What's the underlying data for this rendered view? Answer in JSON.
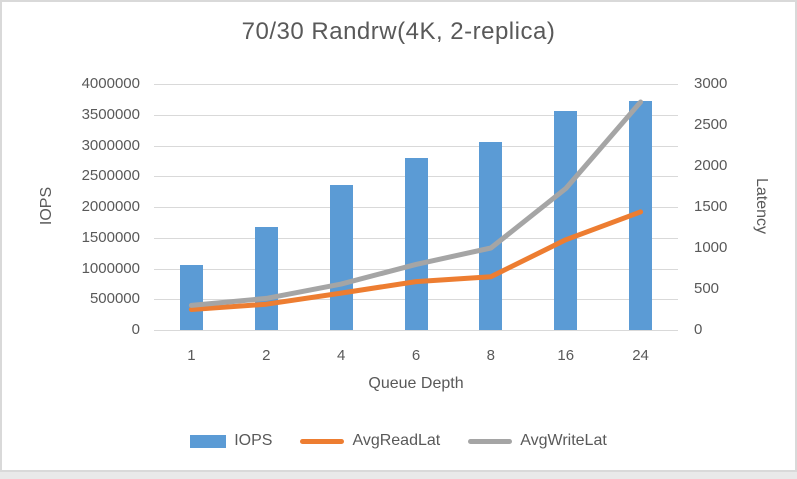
{
  "chart_data": {
    "type": "combo-bar-line",
    "title": "70/30 Randrw(4K, 2-replica)",
    "categories": [
      "1",
      "2",
      "4",
      "6",
      "8",
      "16",
      "24"
    ],
    "xlabel": "Queue Depth",
    "grid": true,
    "legend_position": "bottom",
    "left_axis": {
      "label": "IOPS",
      "min": 0,
      "max": 4000000,
      "tick_step": 500000,
      "tick_labels_top_to_bottom": [
        "4000000",
        "3500000",
        "3000000",
        "2500000",
        "2000000",
        "1500000",
        "1000000",
        "500000",
        "0"
      ]
    },
    "right_axis": {
      "label": "Latency",
      "min": 0,
      "max": 3000,
      "tick_step": 500,
      "tick_labels_top_to_bottom": [
        "3000",
        "2500",
        "2000",
        "1500",
        "1000",
        "500",
        "0"
      ]
    },
    "series": [
      {
        "name": "IOPS",
        "type": "bar",
        "axis": "left",
        "color": "#5B9BD5",
        "values": [
          1060000,
          1680000,
          2360000,
          2790000,
          3050000,
          3560000,
          3720000
        ]
      },
      {
        "name": "AvgReadLat",
        "type": "line",
        "axis": "right",
        "color": "#ED7D31",
        "values": [
          250,
          315,
          450,
          590,
          650,
          1100,
          1440
        ]
      },
      {
        "name": "AvgWriteLat",
        "type": "line",
        "axis": "right",
        "color": "#A5A5A5",
        "values": [
          300,
          385,
          560,
          800,
          1000,
          1725,
          2780
        ]
      }
    ],
    "colors": {
      "text": "#595959",
      "gridline": "#D9D9D9",
      "background": "#FFFFFF"
    }
  }
}
